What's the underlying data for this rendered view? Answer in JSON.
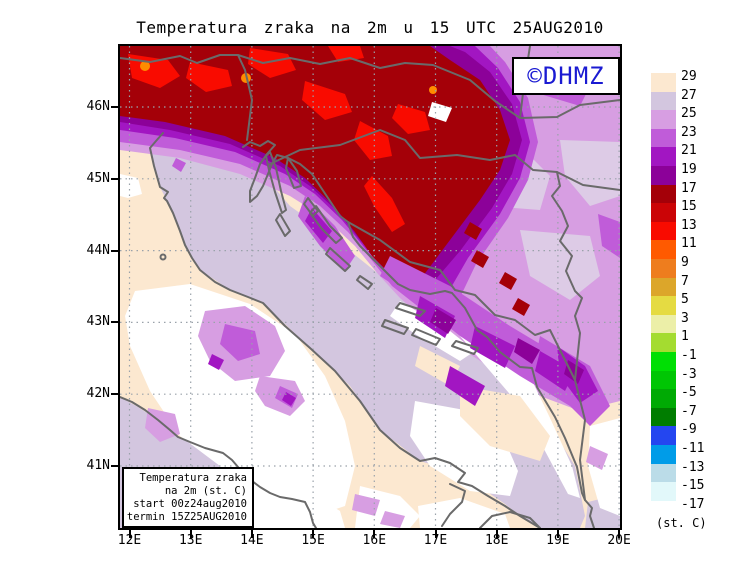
{
  "title": "Temperatura zraka na 2m u 15 UTC 25AUG2010",
  "copyright": "©DHMZ",
  "copyright_color": "#1a1ad2",
  "axes": {
    "lat_labels": [
      "46N",
      "45N",
      "44N",
      "43N",
      "42N",
      "41N"
    ],
    "lon_labels": [
      "12E",
      "13E",
      "14E",
      "15E",
      "16E",
      "17E",
      "18E",
      "19E",
      "20E"
    ]
  },
  "legend": {
    "unit": "(st. C)",
    "entries": [
      {
        "value": "29",
        "color": "#FCE8D0"
      },
      {
        "value": "27",
        "color": "#D3C6DF"
      },
      {
        "value": "25",
        "color": "#D79EE2"
      },
      {
        "value": "23",
        "color": "#C05CD9"
      },
      {
        "value": "21",
        "color": "#A216C2"
      },
      {
        "value": "19",
        "color": "#8C0199"
      },
      {
        "value": "17",
        "color": "#A40008"
      },
      {
        "value": "15",
        "color": "#CB0406"
      },
      {
        "value": "13",
        "color": "#F90B00"
      },
      {
        "value": "11",
        "color": "#FF5A00"
      },
      {
        "value": "9",
        "color": "#EE7D1E"
      },
      {
        "value": "7",
        "color": "#DCA62A"
      },
      {
        "value": "5",
        "color": "#E5DB42"
      },
      {
        "value": "3",
        "color": "#ECEFA8"
      },
      {
        "value": "1",
        "color": "#A4DC30"
      },
      {
        "value": "-1",
        "color": "#00DF04"
      },
      {
        "value": "-3",
        "color": "#00C604"
      },
      {
        "value": "-5",
        "color": "#00AA04"
      },
      {
        "value": "-7",
        "color": "#007D00"
      },
      {
        "value": "-9",
        "color": "#2446F0"
      },
      {
        "value": "-11",
        "color": "#009CE8"
      },
      {
        "value": "-13",
        "color": "#BBDCE8"
      },
      {
        "value": "-15",
        "color": "#E2F8FA"
      },
      {
        "value": "-17",
        "color": "#FFFFFF"
      }
    ]
  },
  "info_box": {
    "lines": [
      "Temperatura zraka",
      "na 2m (st. C)",
      "start 00z24aug2010",
      "termin 15Z25AUG2010"
    ]
  },
  "map": {
    "colors": {
      "white": "#FFFFFF",
      "pale_lilac": "#DDCBE6",
      "spot_orange": "#FF8C00",
      "coast": "#6A6A6A",
      "grid": "#9AA2AA",
      "frame": "#000000"
    }
  }
}
